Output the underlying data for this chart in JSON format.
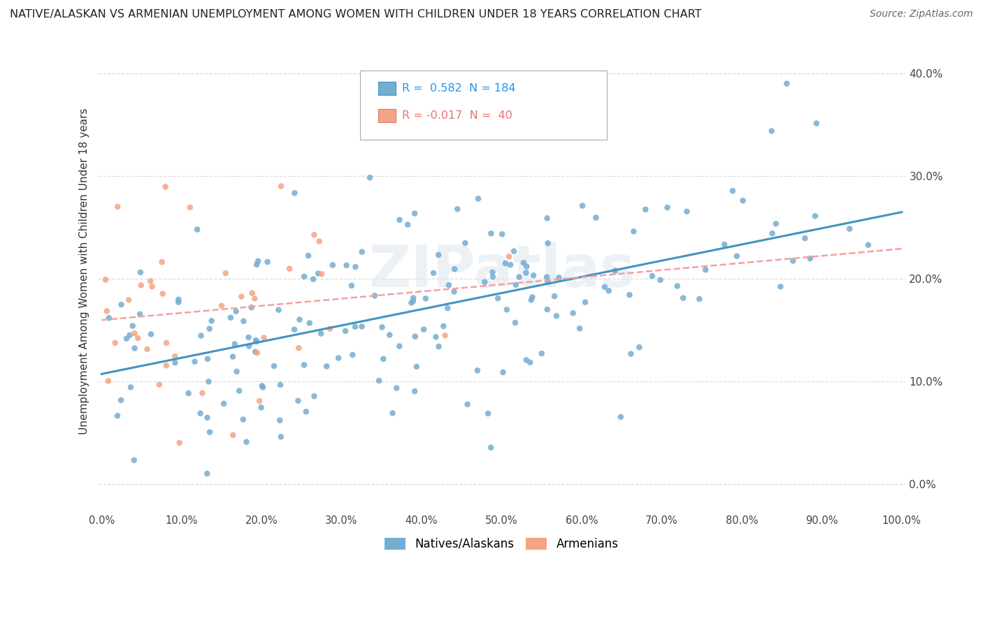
{
  "title": "NATIVE/ALASKAN VS ARMENIAN UNEMPLOYMENT AMONG WOMEN WITH CHILDREN UNDER 18 YEARS CORRELATION CHART",
  "source": "Source: ZipAtlas.com",
  "ylabel": "Unemployment Among Women with Children Under 18 years",
  "xlim": [
    0,
    1.0
  ],
  "ylim": [
    -0.025,
    0.44
  ],
  "xticks": [
    0.0,
    0.1,
    0.2,
    0.3,
    0.4,
    0.5,
    0.6,
    0.7,
    0.8,
    0.9,
    1.0
  ],
  "xticklabels": [
    "0.0%",
    "10.0%",
    "20.0%",
    "30.0%",
    "40.0%",
    "50.0%",
    "60.0%",
    "70.0%",
    "80.0%",
    "90.0%",
    "100.0%"
  ],
  "yticks_right": [
    0.0,
    0.1,
    0.2,
    0.3,
    0.4
  ],
  "yticklabels_right": [
    "0.0%",
    "10.0%",
    "20.0%",
    "30.0%",
    "40.0%"
  ],
  "native_color": "#74add1",
  "armenian_color": "#f4a582",
  "native_trend_color": "#4393c3",
  "armenian_trend_color": "#f4a0a0",
  "R_native": 0.582,
  "N_native": 184,
  "R_armenian": -0.017,
  "N_armenian": 40,
  "watermark": "ZIPatlas",
  "seed_native": 42,
  "seed_armenian": 7
}
